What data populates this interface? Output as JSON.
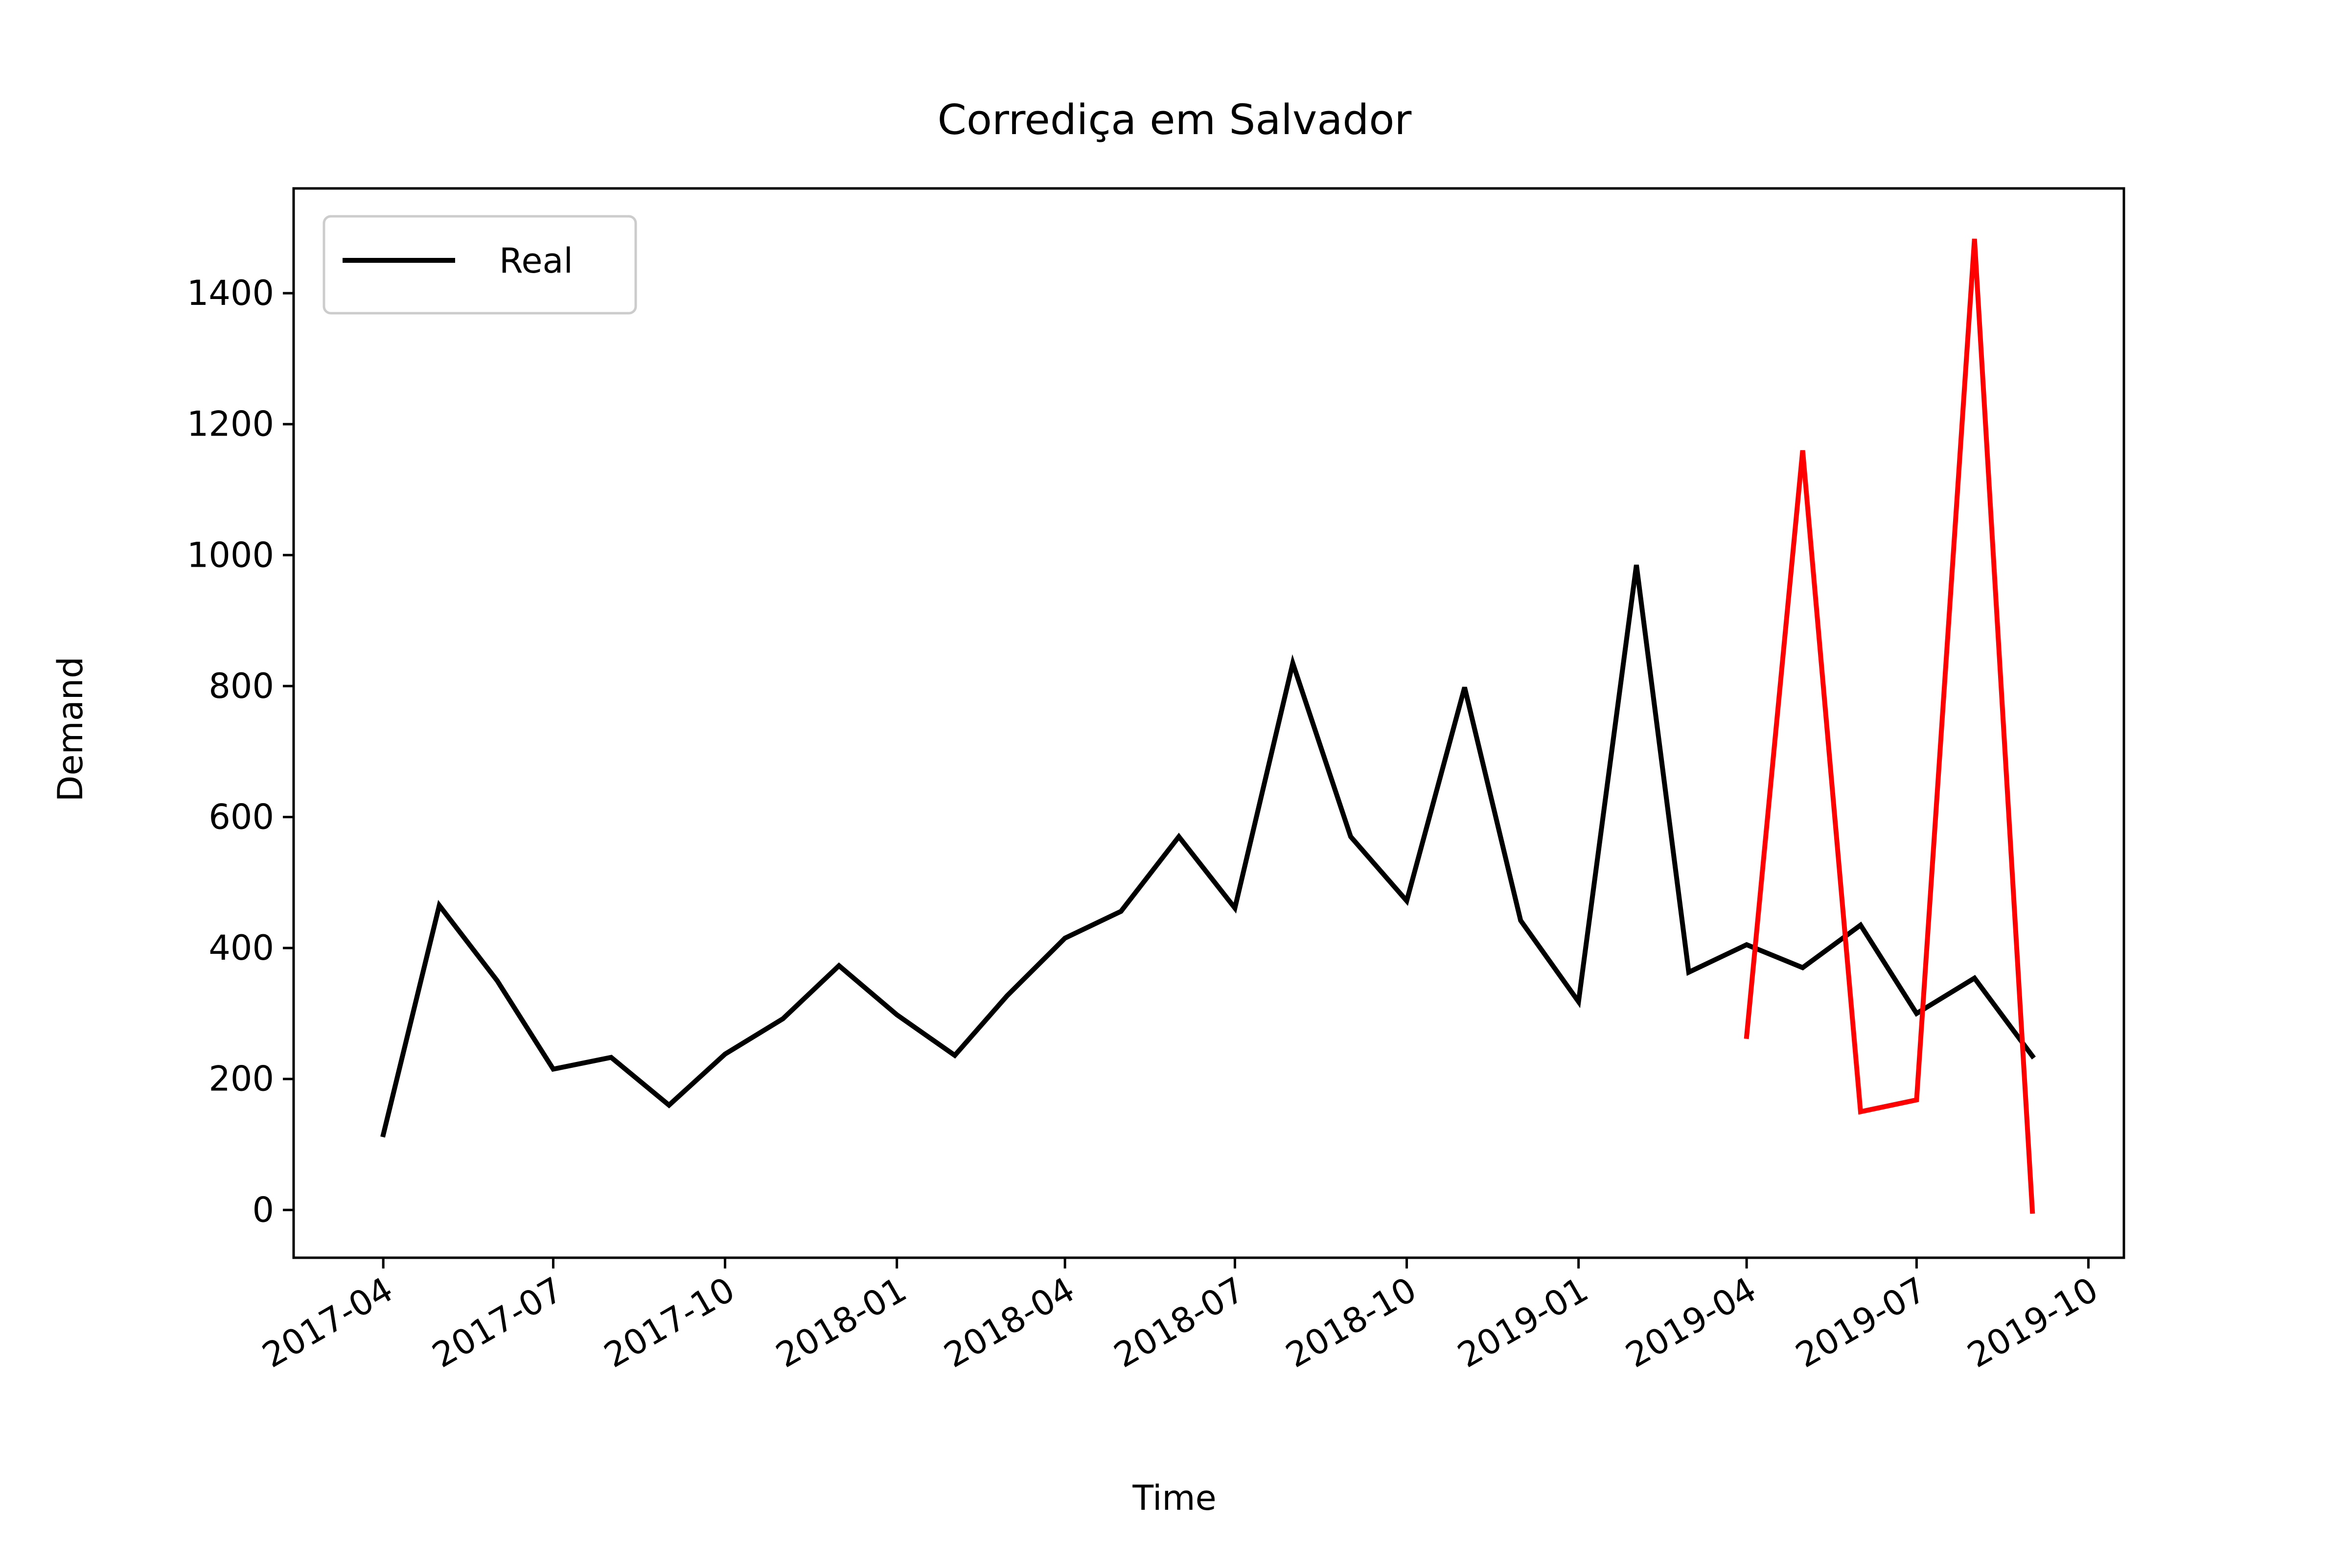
{
  "chart_data": {
    "type": "line",
    "title": "Corrediça em Salvador",
    "xlabel": "Time",
    "ylabel": "Demand",
    "x_tick_labels": [
      "2017-04",
      "2017-07",
      "2017-10",
      "2018-01",
      "2018-04",
      "2018-07",
      "2018-10",
      "2019-01",
      "2019-04",
      "2019-07",
      "2019-10"
    ],
    "x_ticks": [
      "2017-04-01",
      "2017-07-01",
      "2017-10-01",
      "2018-01-01",
      "2018-04-01",
      "2018-07-01",
      "2018-10-01",
      "2019-01-01",
      "2019-04-01",
      "2019-07-01",
      "2019-10-01"
    ],
    "y_ticks": [
      0,
      200,
      400,
      600,
      800,
      1000,
      1200,
      1400
    ],
    "xlim": [
      "2017-02-12",
      "2019-10-20"
    ],
    "ylim": [
      -73,
      1560
    ],
    "grid": false,
    "legend": {
      "position": "top-left",
      "entries": [
        "Real"
      ]
    },
    "series": [
      {
        "name": "Real",
        "color": "#000000",
        "points": [
          [
            "2017-04-01",
            115
          ],
          [
            "2017-05-01",
            465
          ],
          [
            "2017-06-01",
            350
          ],
          [
            "2017-07-01",
            215
          ],
          [
            "2017-08-01",
            233
          ],
          [
            "2017-09-01",
            160
          ],
          [
            "2017-10-01",
            238
          ],
          [
            "2017-11-01",
            292
          ],
          [
            "2017-12-01",
            373
          ],
          [
            "2018-01-01",
            298
          ],
          [
            "2018-02-01",
            236
          ],
          [
            "2018-03-01",
            327
          ],
          [
            "2018-04-01",
            415
          ],
          [
            "2018-05-01",
            456
          ],
          [
            "2018-06-01",
            570
          ],
          [
            "2018-07-01",
            461
          ],
          [
            "2018-08-01",
            835
          ],
          [
            "2018-09-01",
            570
          ],
          [
            "2018-10-01",
            472
          ],
          [
            "2018-11-01",
            798
          ],
          [
            "2018-12-01",
            442
          ],
          [
            "2019-01-01",
            318
          ],
          [
            "2019-02-01",
            985
          ],
          [
            "2019-03-01",
            363
          ],
          [
            "2019-04-01",
            405
          ],
          [
            "2019-05-01",
            370
          ],
          [
            "2019-06-01",
            435
          ],
          [
            "2019-07-01",
            300
          ],
          [
            "2019-08-01",
            354
          ],
          [
            "2019-09-01",
            235
          ]
        ]
      },
      {
        "color": "#ff0000",
        "points": [
          [
            "2019-04-01",
            265
          ],
          [
            "2019-05-01",
            1160
          ],
          [
            "2019-06-01",
            150
          ],
          [
            "2019-07-01",
            168
          ],
          [
            "2019-08-01",
            1483
          ],
          [
            "2019-09-01",
            -2
          ]
        ]
      }
    ]
  }
}
